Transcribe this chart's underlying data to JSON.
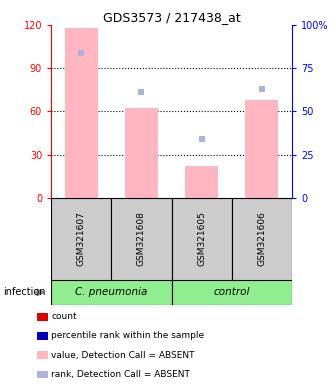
{
  "title": "GDS3573 / 217438_at",
  "samples": [
    "GSM321607",
    "GSM321608",
    "GSM321605",
    "GSM321606"
  ],
  "bar_values_absent": [
    118,
    62,
    22,
    68
  ],
  "rank_values_absent": [
    84,
    61,
    34,
    63
  ],
  "ylim_left": [
    0,
    120
  ],
  "ylim_right": [
    0,
    100
  ],
  "yticks_left": [
    0,
    30,
    60,
    90,
    120
  ],
  "yticks_right": [
    0,
    25,
    50,
    75,
    100
  ],
  "ytick_labels_left": [
    "0",
    "30",
    "60",
    "90",
    "120"
  ],
  "ytick_labels_right": [
    "0",
    "25",
    "50",
    "75",
    "100%"
  ],
  "bar_color_absent": "#ffb6c1",
  "rank_color_absent": "#aab4d8",
  "sample_box_color": "#cccccc",
  "dotted_lines": [
    30,
    60,
    90
  ],
  "group_spans": [
    {
      "label": "C. pneumonia",
      "start": 0,
      "end": 2,
      "color": "#90EE90"
    },
    {
      "label": "control",
      "start": 2,
      "end": 4,
      "color": "#90EE90"
    }
  ],
  "legend_items": [
    {
      "label": "count",
      "color": "#dd0000"
    },
    {
      "label": "percentile rank within the sample",
      "color": "#0000bb"
    },
    {
      "label": "value, Detection Call = ABSENT",
      "color": "#ffb6c1"
    },
    {
      "label": "rank, Detection Call = ABSENT",
      "color": "#aab4d8"
    }
  ],
  "infection_label": "infection"
}
